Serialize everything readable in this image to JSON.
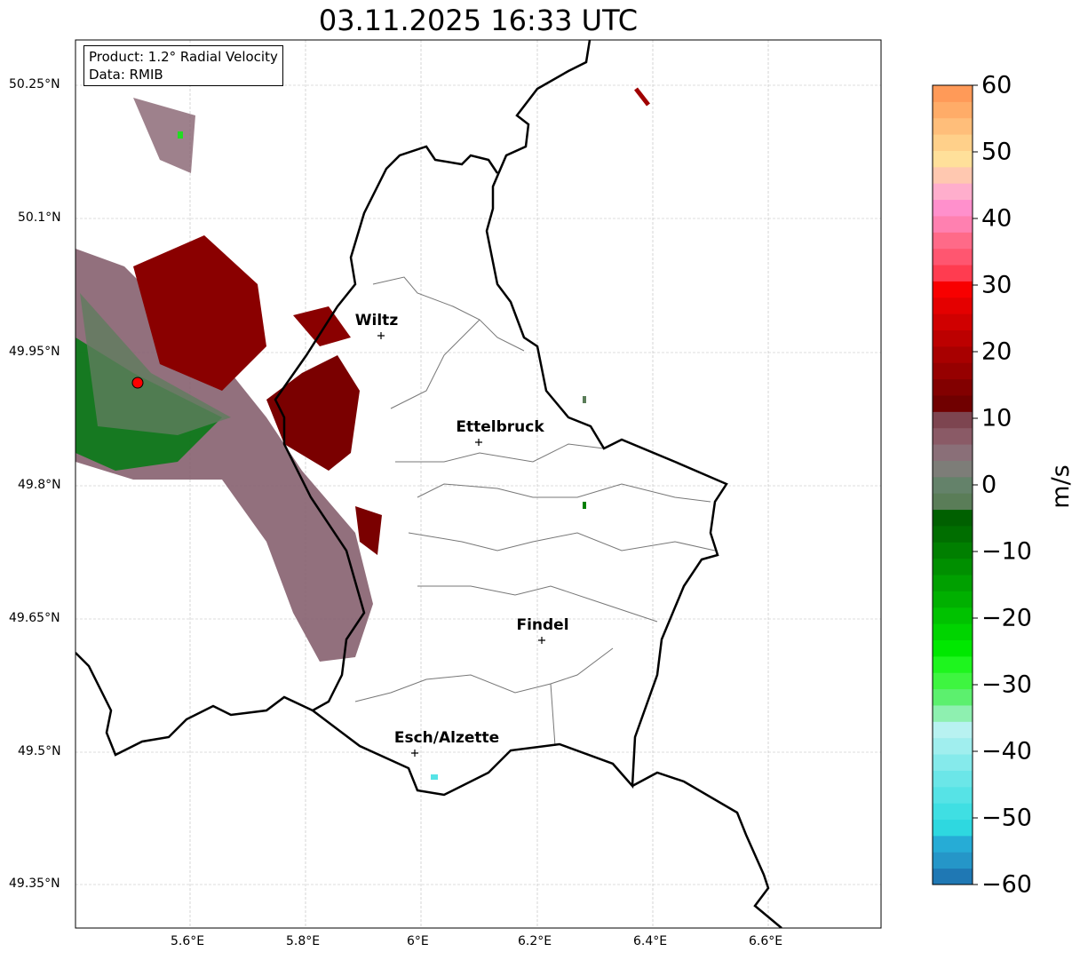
{
  "title": "03.11.2025 16:33 UTC",
  "info": {
    "product": "Product: 1.2° Radial Velocity",
    "data": "Data: RMIB"
  },
  "lon_ticks": [
    "5.6°E",
    "5.8°E",
    "6°E",
    "6.2°E",
    "6.4°E",
    "6.6°E"
  ],
  "lat_ticks": [
    "50.25°N",
    "50.1°N",
    "49.95°N",
    "49.8°N",
    "49.65°N",
    "49.5°N",
    "49.35°N"
  ],
  "cities": [
    {
      "name": "Wiltz"
    },
    {
      "name": "Ettelbruck"
    },
    {
      "name": "Findel"
    },
    {
      "name": "Esch/Alzette"
    }
  ],
  "colorbar": {
    "unit": "m/s",
    "min": -60,
    "max": 60,
    "ticks": [
      "60",
      "50",
      "40",
      "30",
      "20",
      "10",
      "0",
      "−10",
      "−20",
      "−30",
      "−40",
      "−50",
      "−60"
    ],
    "colors": [
      "#1f78b4",
      "#2596c8",
      "#26acd6",
      "#2ed8e0",
      "#3fdfe3",
      "#56e3e6",
      "#6be6e8",
      "#85eaeb",
      "#a0eeee",
      "#b8f2f1",
      "#8ef0b0",
      "#5cf06e",
      "#3ef540",
      "#1ef51e",
      "#00e800",
      "#00d400",
      "#00c200",
      "#00b000",
      "#00a000",
      "#008f00",
      "#007f00",
      "#006e00",
      "#006000",
      "#5a7d58",
      "#64826a",
      "#7d7d78",
      "#8a6f78",
      "#8a5a66",
      "#7d4550",
      "#700000",
      "#820000",
      "#960000",
      "#a80000",
      "#bc0000",
      "#d00000",
      "#e40000",
      "#f80000",
      "#ff3c50",
      "#ff5670",
      "#ff6a88",
      "#ff80b0",
      "#ff90cc",
      "#ffaecc",
      "#ffc8b0",
      "#ffe09a",
      "#ffd08a",
      "#ffbe7a",
      "#ffac68",
      "#ff9a58"
    ]
  }
}
